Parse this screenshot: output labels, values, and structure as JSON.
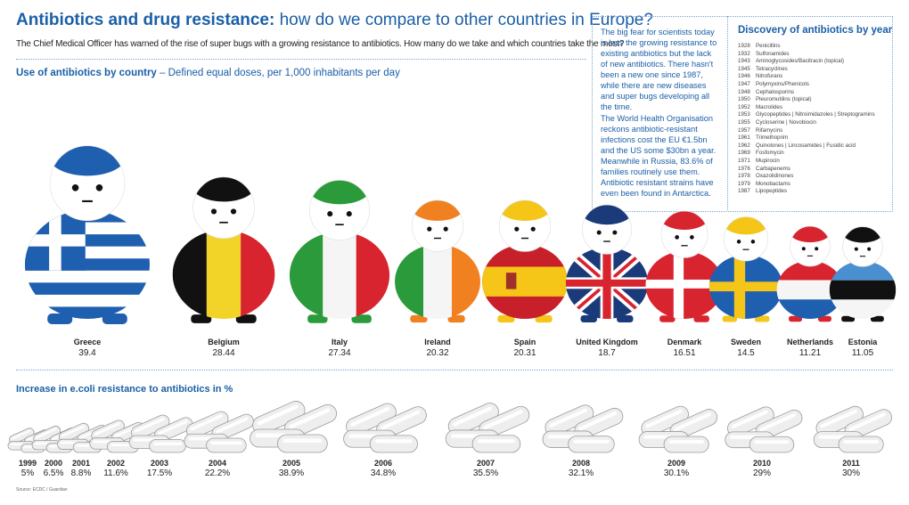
{
  "header": {
    "title_main": "Antibiotics and drug resistance:",
    "title_sub": " how do we compare to other countries in Europe?",
    "intro": "The Chief Medical Officer has warned of the rise of super bugs with a growing resistance to antibiotics. How many do we take and which countries take the most?"
  },
  "section1": {
    "label_bold": "Use of antibiotics by country",
    "label_rest": " – Defined equal doses, per 1,000 inhabitants per day"
  },
  "notes": {
    "p1": "The big fear for scientists today is less the growing resistance to existing antibiotics but the lack of new antibiotics. There hasn't been a new one since 1987, while there are new diseases and super bugs developing all the time.",
    "p2": "The World Health Organisation reckons antibiotic-resistant infections cost the EU €1.5bn and the US some $30bn a year. Meanwhile in Russia, 83.6% of families routinely use them. Antibiotic resistant strains have even been found in Antarctica."
  },
  "discovery": {
    "title": "Discovery of antibiotics by year",
    "items": [
      {
        "year": "1928",
        "name": "Penicillins"
      },
      {
        "year": "1932",
        "name": "Sulfonamides"
      },
      {
        "year": "1943",
        "name": "Aminoglycosides/Bacitracin (topical)"
      },
      {
        "year": "1945",
        "name": "Tetracyclines"
      },
      {
        "year": "1946",
        "name": "Nitrofurans"
      },
      {
        "year": "1947",
        "name": "Polymyxins/Phenicols"
      },
      {
        "year": "1948",
        "name": "Cephalosporins"
      },
      {
        "year": "1950",
        "name": "Pleuromutilins (topical)"
      },
      {
        "year": "1952",
        "name": "Macrolides"
      },
      {
        "year": "1953",
        "name": "Glycopeptides | Nitroimidazoles | Streptogramins"
      },
      {
        "year": "1955",
        "name": "Cycloserine | Novobiocin"
      },
      {
        "year": "1957",
        "name": "Rifamycins"
      },
      {
        "year": "1961",
        "name": "Trimethoprim"
      },
      {
        "year": "1962",
        "name": "Quinolones | Lincosamides | Fusidic acid"
      },
      {
        "year": "1969",
        "name": "Fosfomycin"
      },
      {
        "year": "1971",
        "name": "Mupirocin"
      },
      {
        "year": "1976",
        "name": "Carbapenems"
      },
      {
        "year": "1978",
        "name": "Oxazolidinones"
      },
      {
        "year": "1979",
        "name": "Monobactams"
      },
      {
        "year": "1987",
        "name": "Lipopeptides"
      }
    ]
  },
  "section2": {
    "label": "Increase in e.coli resistance to antibiotics in %"
  },
  "source": "Source: ECDC / Guardian",
  "colors": {
    "accent": "#1a5fa8",
    "pill_fill": "#eeeeee",
    "pill_stroke": "#9a9a9a"
  },
  "chart_data": [
    {
      "type": "bar",
      "title": "Use of antibiotics by country",
      "unit": "Defined equal doses, per 1,000 inhabitants per day",
      "categories": [
        "Greece",
        "Belgium",
        "Italy",
        "Ireland",
        "Spain",
        "United Kingdom",
        "Denmark",
        "Sweden",
        "Netherlands",
        "Estonia"
      ],
      "values": [
        39.4,
        28.44,
        27.34,
        20.32,
        20.31,
        18.7,
        16.51,
        14.5,
        11.21,
        11.05
      ],
      "value_labels": [
        "39.4",
        "28.44",
        "27.34",
        "20.32",
        "20.31",
        "18.7",
        "16.51",
        "14.5",
        "11.21",
        "11.05"
      ],
      "flags": [
        "greece",
        "belgium",
        "italy",
        "ireland",
        "spain",
        "uk",
        "denmark",
        "sweden",
        "netherlands",
        "estonia"
      ],
      "hair_colors": [
        "#1e5fb0",
        "#111111",
        "#2a9a3a",
        "#f08020",
        "#f5c518",
        "#1a3a7a",
        "#d8242f",
        "#f5c518",
        "#d8242f",
        "#111111"
      ]
    },
    {
      "type": "bar",
      "title": "Increase in e.coli resistance to antibiotics in %",
      "categories": [
        "1999",
        "2000",
        "2001",
        "2002",
        "2003",
        "2004",
        "2005",
        "2006",
        "2007",
        "2008",
        "2009",
        "2010",
        "2011"
      ],
      "values": [
        5,
        6.5,
        8.8,
        11.6,
        17.5,
        22.2,
        38.9,
        34.8,
        35.5,
        32.1,
        30.1,
        29,
        30
      ],
      "value_labels": [
        "5%",
        "6.5%",
        "8.8%",
        "11.6%",
        "17.5%",
        "22.2%",
        "38.9%",
        "34.8%",
        "35.5%",
        "32.1%",
        "30.1%",
        "29%",
        "30%"
      ]
    }
  ]
}
